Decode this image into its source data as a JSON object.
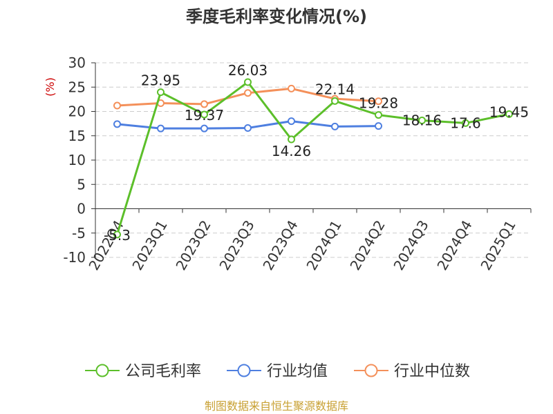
{
  "chart_data": {
    "type": "line",
    "title": "季度毛利率变化情况(%)",
    "ylabel": "(%)",
    "ylim": [
      -10,
      30
    ],
    "yticks": [
      30,
      25,
      20,
      15,
      10,
      5,
      0,
      -5,
      -10
    ],
    "grid": true,
    "legend_position": "bottom",
    "categories": [
      "2022Q4",
      "2023Q1",
      "2023Q2",
      "2023Q3",
      "2023Q4",
      "2024Q1",
      "2024Q2",
      "2024Q3",
      "2024Q4",
      "2025Q1"
    ],
    "series": [
      {
        "name": "公司毛利率",
        "color": "#5cbf2a",
        "values": [
          -5.3,
          23.95,
          19.37,
          26.03,
          14.26,
          22.14,
          19.28,
          18.16,
          17.6,
          19.45
        ],
        "labels": [
          "-5.3",
          "23.95",
          "19.37",
          "26.03",
          "14.26",
          "22.14",
          "19.28",
          "18.16",
          "17.6",
          "19.45"
        ]
      },
      {
        "name": "行业均值",
        "color": "#4e7fe0",
        "values": [
          17.4,
          16.5,
          16.5,
          16.6,
          18.0,
          16.9,
          17.0,
          null,
          null,
          null
        ]
      },
      {
        "name": "行业中位数",
        "color": "#f4905a",
        "values": [
          21.2,
          21.7,
          21.5,
          23.8,
          24.7,
          22.6,
          22.1,
          null,
          null,
          null
        ]
      }
    ],
    "unit_color": "#cc0000"
  },
  "source_text": "制图数据来自恒生聚源数据库",
  "source_color": "#c8a032"
}
